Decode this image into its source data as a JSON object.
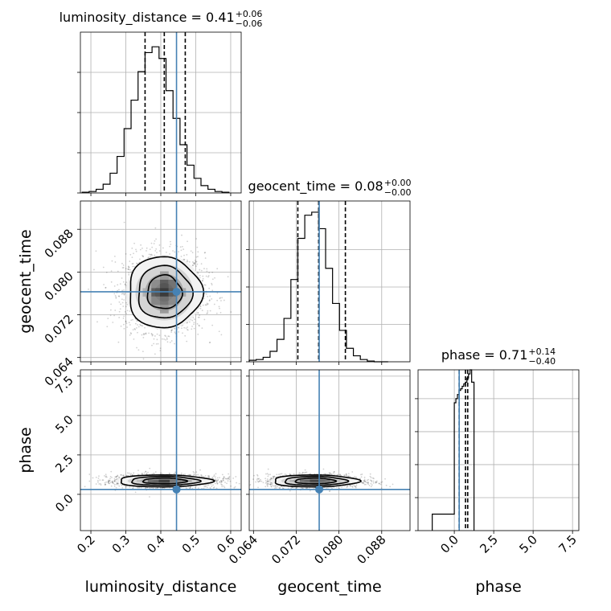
{
  "chart_data": {
    "type": "corner",
    "params": [
      {
        "name": "luminosity_distance",
        "label": "luminosity_distance",
        "range": [
          0.17,
          0.63
        ],
        "ticks": [
          0.2,
          0.3,
          0.4,
          0.5,
          0.6
        ],
        "tick_labels": [
          "0.2",
          "0.3",
          "0.4",
          "0.5",
          "0.6"
        ],
        "title": {
          "prefix": "luminosity_distance = 0.41",
          "plus": "+0.06",
          "minus": "−0.06"
        },
        "hist_edges_start": 0.175,
        "hist_bin_width": 0.02,
        "hist_counts": [
          1,
          2,
          5,
          12,
          27,
          50,
          88,
          127,
          166,
          192,
          200,
          184,
          140,
          102,
          66,
          38,
          20,
          10,
          5,
          2,
          1
        ],
        "quantiles": [
          0.355,
          0.41,
          0.47
        ],
        "truth": 0.445
      },
      {
        "name": "geocent_time",
        "label": "geocent_time",
        "range": [
          0.0632,
          0.0933
        ],
        "ticks": [
          0.064,
          0.072,
          0.08,
          0.088
        ],
        "tick_labels": [
          "0.064",
          "0.072",
          "0.080",
          "0.088"
        ],
        "title": {
          "prefix": "geocent_time = 0.08",
          "plus": "+0.00",
          "minus": "−0.00"
        },
        "hist_edges_start": 0.0632,
        "hist_bin_width": 0.0013,
        "hist_counts": [
          2,
          3,
          6,
          14,
          30,
          58,
          110,
          165,
          196,
          200,
          178,
          125,
          78,
          42,
          18,
          8,
          3,
          1,
          0,
          0
        ],
        "quantiles": [
          0.0723,
          0.0762,
          0.0812
        ],
        "truth": 0.0763
      },
      {
        "name": "phase",
        "label": "phase",
        "range": [
          -2.3,
          7.9
        ],
        "ticks": [
          0.0,
          2.5,
          5.0,
          7.5
        ],
        "tick_labels": [
          "0.0",
          "2.5",
          "5.0",
          "7.5"
        ],
        "title": {
          "prefix": "phase = 0.71",
          "plus": "+0.14",
          "minus": "−0.40"
        },
        "hist_edges": [
          -1.4,
          0.0,
          0.1,
          0.2,
          0.3,
          0.4,
          0.5,
          0.6,
          0.7,
          0.8,
          0.9,
          1.0,
          1.1,
          1.25
        ],
        "hist_counts": [
          0.2,
          1.55,
          1.6,
          1.65,
          1.7,
          1.72,
          1.75,
          1.78,
          1.8,
          1.85,
          1.9,
          1.95,
          1.8
        ],
        "quantiles": [
          0.31,
          0.71,
          0.85
        ],
        "truth": 0.31
      }
    ],
    "hist_ymax": [
      220,
      215,
      1.95
    ],
    "hist_yticks": [
      [
        0,
        55,
        110,
        165
      ],
      [
        0,
        50,
        100,
        150
      ],
      [
        0,
        0.4,
        0.8,
        1.2,
        1.6
      ]
    ],
    "pairs": [
      {
        "x": 0,
        "y": 1,
        "center": [
          0.41,
          0.0762
        ],
        "sd": [
          0.055,
          0.0035
        ],
        "contour_levels": [
          0.5,
          1.0,
          1.5,
          2.0
        ]
      },
      {
        "x": 0,
        "y": 2,
        "center": [
          0.41,
          0.85
        ],
        "sd": [
          0.07,
          0.2
        ],
        "contour_levels": [
          0.5,
          1.0,
          1.5,
          2.0
        ]
      },
      {
        "x": 1,
        "y": 2,
        "center": [
          0.0755,
          0.85
        ],
        "sd": [
          0.0042,
          0.2
        ],
        "contour_levels": [
          0.5,
          1.0,
          1.5,
          2.0
        ]
      }
    ],
    "colors": {
      "truth": "#4682b4",
      "hist": "#000000",
      "grid": "#b0b0b0",
      "points": "#000000"
    },
    "grid": true
  }
}
